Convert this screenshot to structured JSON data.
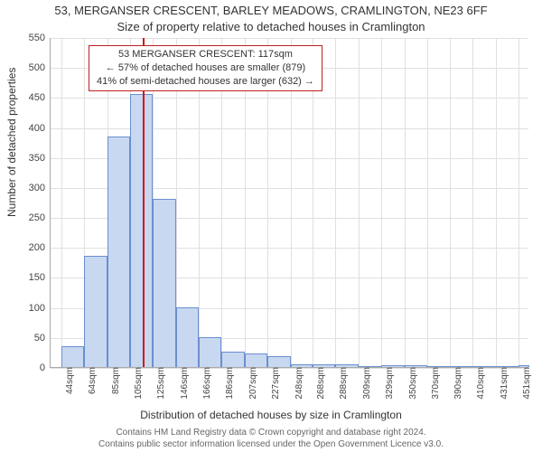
{
  "title_line1": "53, MERGANSER CRESCENT, BARLEY MEADOWS, CRAMLINGTON, NE23 6FF",
  "title_line2": "Size of property relative to detached houses in Cramlington",
  "ylabel": "Number of detached properties",
  "xlabel": "Distribution of detached houses by size in Cramlington",
  "footer_line1": "Contains HM Land Registry data © Crown copyright and database right 2024.",
  "footer_line2": "Contains public sector information licensed under the Open Government Licence v3.0.",
  "annotation": {
    "line1": "53 MERGANSER CRESCENT: 117sqm",
    "line2": "← 57% of detached houses are smaller (879)",
    "line3": "41% of semi-detached houses are larger (632) →",
    "border_color": "#c02020"
  },
  "chart": {
    "type": "bar",
    "background_color": "#ffffff",
    "grid_color": "#e0e0e0",
    "axis_color": "#aaaaaa",
    "bar_fill": "#c8d8f0",
    "bar_border": "#6a8fcf",
    "marker_color": "#d01818",
    "marker_at": 117,
    "xlim": [
      34,
      461
    ],
    "ylim": [
      0,
      550
    ],
    "ytick_step": 50,
    "xticks": [
      44,
      64,
      85,
      105,
      125,
      146,
      166,
      186,
      207,
      227,
      248,
      268,
      288,
      309,
      329,
      350,
      370,
      390,
      410,
      431,
      451
    ],
    "xtick_suffix": "sqm",
    "bars": [
      {
        "x0": 44,
        "x1": 64,
        "y": 35
      },
      {
        "x0": 64,
        "x1": 85,
        "y": 185
      },
      {
        "x0": 85,
        "x1": 105,
        "y": 385
      },
      {
        "x0": 105,
        "x1": 125,
        "y": 455
      },
      {
        "x0": 125,
        "x1": 146,
        "y": 280
      },
      {
        "x0": 146,
        "x1": 166,
        "y": 100
      },
      {
        "x0": 166,
        "x1": 186,
        "y": 50
      },
      {
        "x0": 186,
        "x1": 207,
        "y": 25
      },
      {
        "x0": 207,
        "x1": 227,
        "y": 22
      },
      {
        "x0": 227,
        "x1": 248,
        "y": 18
      },
      {
        "x0": 248,
        "x1": 268,
        "y": 5
      },
      {
        "x0": 268,
        "x1": 288,
        "y": 5
      },
      {
        "x0": 288,
        "x1": 309,
        "y": 5
      },
      {
        "x0": 309,
        "x1": 329,
        "y": 0
      },
      {
        "x0": 329,
        "x1": 350,
        "y": 3
      },
      {
        "x0": 350,
        "x1": 370,
        "y": 3
      },
      {
        "x0": 370,
        "x1": 390,
        "y": 0
      },
      {
        "x0": 390,
        "x1": 410,
        "y": 0
      },
      {
        "x0": 410,
        "x1": 431,
        "y": 2
      },
      {
        "x0": 431,
        "x1": 451,
        "y": 0
      },
      {
        "x0": 451,
        "x1": 461,
        "y": 3
      }
    ],
    "title_fontsize": 13,
    "label_fontsize": 12,
    "tick_fontsize": 11
  }
}
